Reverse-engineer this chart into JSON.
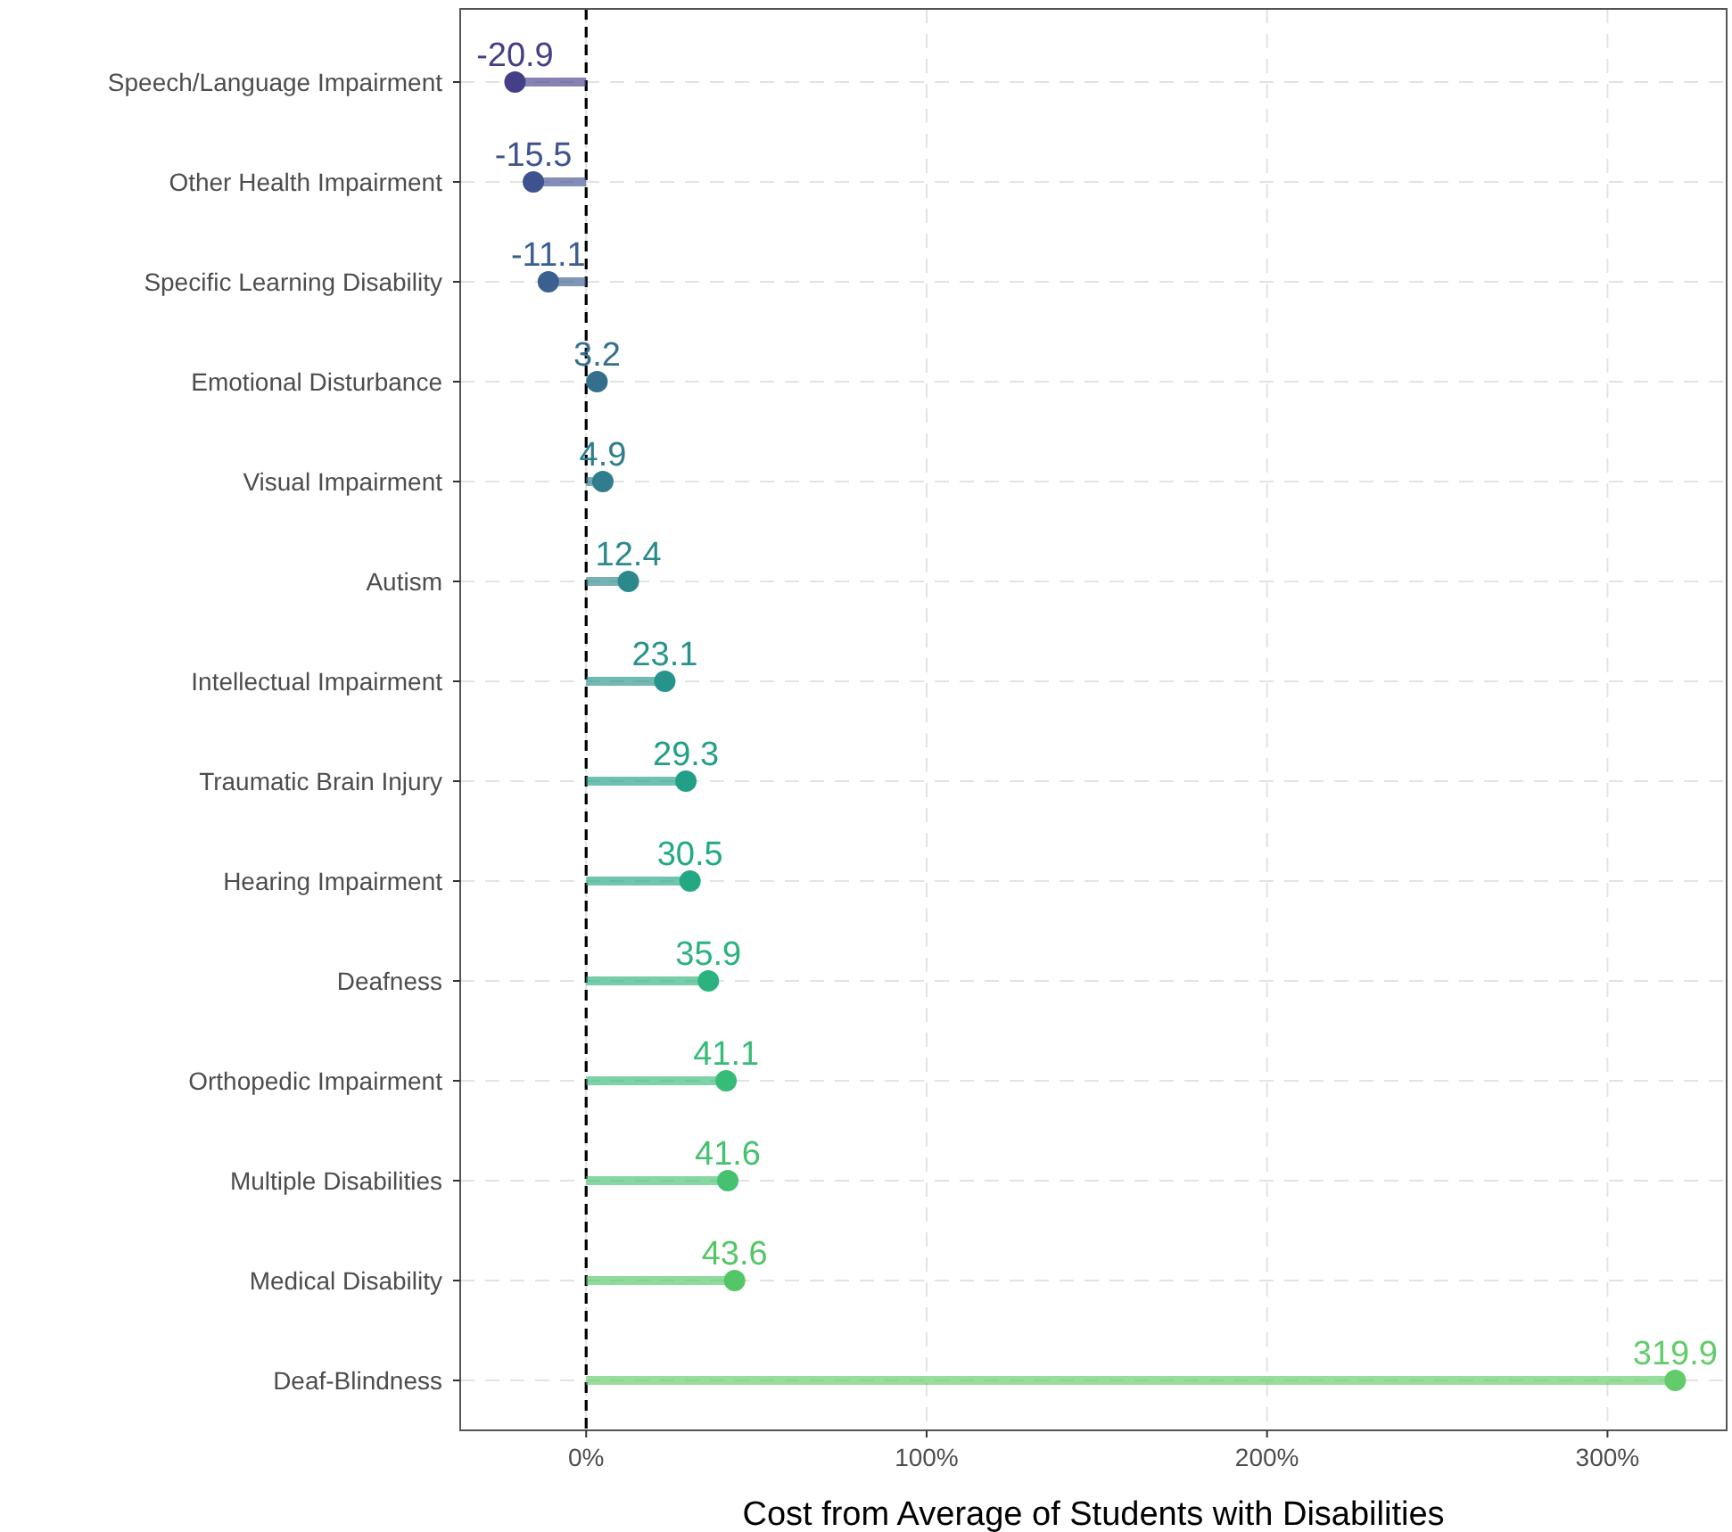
{
  "chart_data": {
    "type": "lollipop",
    "orientation": "horizontal",
    "xlabel": "Cost from Average of Students with Disabilities",
    "categories": [
      "Speech/Language Impairment",
      "Other Health Impairment",
      "Specific Learning Disability",
      "Emotional Disturbance",
      "Visual Impairment",
      "Autism",
      "Intellectual Impairment",
      "Traumatic Brain Injury",
      "Hearing Impairment",
      "Deafness",
      "Orthopedic Impairment",
      "Multiple Disabilities",
      "Medical Disability",
      "Deaf-Blindness"
    ],
    "values": [
      -20.9,
      -15.5,
      -11.1,
      3.2,
      4.9,
      12.4,
      23.1,
      29.3,
      30.5,
      35.9,
      41.1,
      41.6,
      43.6,
      319.9
    ],
    "colors": [
      "#453f88",
      "#3f5290",
      "#39608f",
      "#34708e",
      "#2f7d8d",
      "#2b898c",
      "#26948a",
      "#21a087",
      "#22a884",
      "#2bb27f",
      "#37bb78",
      "#45c16f",
      "#55c667",
      "#62cb6a"
    ],
    "xlim": [
      -37,
      335
    ],
    "xticks": [
      {
        "value": 0,
        "label": "0%"
      },
      {
        "value": 100,
        "label": "100%"
      },
      {
        "value": 200,
        "label": "200%"
      },
      {
        "value": 300,
        "label": "300%"
      }
    ],
    "grid": true,
    "data_labels": true,
    "marker": "circle",
    "ref_lines": [
      {
        "axis": "x",
        "value": 0,
        "line_style": "dashed",
        "color": "#000000"
      }
    ]
  }
}
